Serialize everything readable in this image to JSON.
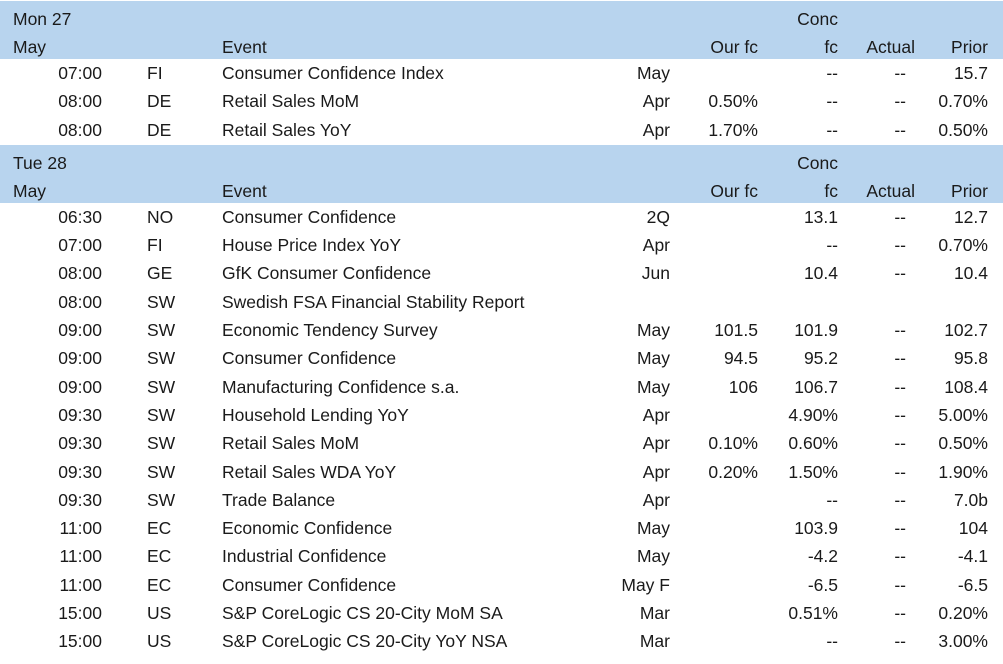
{
  "header": {
    "event": "Event",
    "our_fc": "Our fc",
    "conc_line1": "Conc",
    "conc_line2": "fc",
    "actual": "Actual",
    "prior": "Prior"
  },
  "days": [
    {
      "day": "Mon 27",
      "month": "May",
      "rows": [
        {
          "time": "07:00",
          "country": "FI",
          "event": "Consumer Confidence Index",
          "period": "May",
          "our_fc": "",
          "conc_fc": "--",
          "actual": "--",
          "prior": "15.7"
        },
        {
          "time": "08:00",
          "country": "DE",
          "event": "Retail Sales MoM",
          "period": "Apr",
          "our_fc": "0.50%",
          "conc_fc": "--",
          "actual": "--",
          "prior": "0.70%"
        },
        {
          "time": "08:00",
          "country": "DE",
          "event": "Retail Sales YoY",
          "period": "Apr",
          "our_fc": "1.70%",
          "conc_fc": "--",
          "actual": "--",
          "prior": "0.50%"
        }
      ]
    },
    {
      "day": "Tue 28",
      "month": "May",
      "rows": [
        {
          "time": "06:30",
          "country": "NO",
          "event": "Consumer Confidence",
          "period": "2Q",
          "our_fc": "",
          "conc_fc": "13.1",
          "actual": "--",
          "prior": "12.7"
        },
        {
          "time": "07:00",
          "country": "FI",
          "event": "House Price Index YoY",
          "period": "Apr",
          "our_fc": "",
          "conc_fc": "--",
          "actual": "--",
          "prior": "0.70%"
        },
        {
          "time": "08:00",
          "country": "GE",
          "event": "GfK Consumer Confidence",
          "period": "Jun",
          "our_fc": "",
          "conc_fc": "10.4",
          "actual": "--",
          "prior": "10.4"
        },
        {
          "time": "08:00",
          "country": "SW",
          "event": "Swedish FSA Financial Stability Report",
          "period": "",
          "our_fc": "",
          "conc_fc": "",
          "actual": "",
          "prior": ""
        },
        {
          "time": "09:00",
          "country": "SW",
          "event": "Economic Tendency Survey",
          "period": "May",
          "our_fc": "101.5",
          "conc_fc": "101.9",
          "actual": "--",
          "prior": "102.7"
        },
        {
          "time": "09:00",
          "country": "SW",
          "event": "Consumer Confidence",
          "period": "May",
          "our_fc": "94.5",
          "conc_fc": "95.2",
          "actual": "--",
          "prior": "95.8"
        },
        {
          "time": "09:00",
          "country": "SW",
          "event": "Manufacturing Confidence s.a.",
          "period": "May",
          "our_fc": "106",
          "conc_fc": "106.7",
          "actual": "--",
          "prior": "108.4"
        },
        {
          "time": "09:30",
          "country": "SW",
          "event": "Household Lending YoY",
          "period": "Apr",
          "our_fc": "",
          "conc_fc": "4.90%",
          "actual": "--",
          "prior": "5.00%"
        },
        {
          "time": "09:30",
          "country": "SW",
          "event": "Retail Sales MoM",
          "period": "Apr",
          "our_fc": "0.10%",
          "conc_fc": "0.60%",
          "actual": "--",
          "prior": "0.50%"
        },
        {
          "time": "09:30",
          "country": "SW",
          "event": "Retail Sales WDA YoY",
          "period": "Apr",
          "our_fc": "0.20%",
          "conc_fc": "1.50%",
          "actual": "--",
          "prior": "1.90%"
        },
        {
          "time": "09:30",
          "country": "SW",
          "event": "Trade Balance",
          "period": "Apr",
          "our_fc": "",
          "conc_fc": "--",
          "actual": "--",
          "prior": "7.0b"
        },
        {
          "time": "11:00",
          "country": "EC",
          "event": "Economic Confidence",
          "period": "May",
          "our_fc": "",
          "conc_fc": "103.9",
          "actual": "--",
          "prior": "104"
        },
        {
          "time": "11:00",
          "country": "EC",
          "event": "Industrial Confidence",
          "period": "May",
          "our_fc": "",
          "conc_fc": "-4.2",
          "actual": "--",
          "prior": "-4.1"
        },
        {
          "time": "11:00",
          "country": "EC",
          "event": "Consumer Confidence",
          "period": "May F",
          "our_fc": "",
          "conc_fc": "-6.5",
          "actual": "--",
          "prior": "-6.5"
        },
        {
          "time": "15:00",
          "country": "US",
          "event": "S&P CoreLogic CS 20-City MoM SA",
          "period": "Mar",
          "our_fc": "",
          "conc_fc": "0.51%",
          "actual": "--",
          "prior": "0.20%"
        },
        {
          "time": "15:00",
          "country": "US",
          "event": "S&P CoreLogic CS 20-City YoY NSA",
          "period": "Mar",
          "our_fc": "",
          "conc_fc": "--",
          "actual": "--",
          "prior": "3.00%"
        }
      ]
    }
  ],
  "colors": {
    "header_band": "#b8d4ee",
    "text": "#1a1a1a",
    "background": "#ffffff"
  }
}
